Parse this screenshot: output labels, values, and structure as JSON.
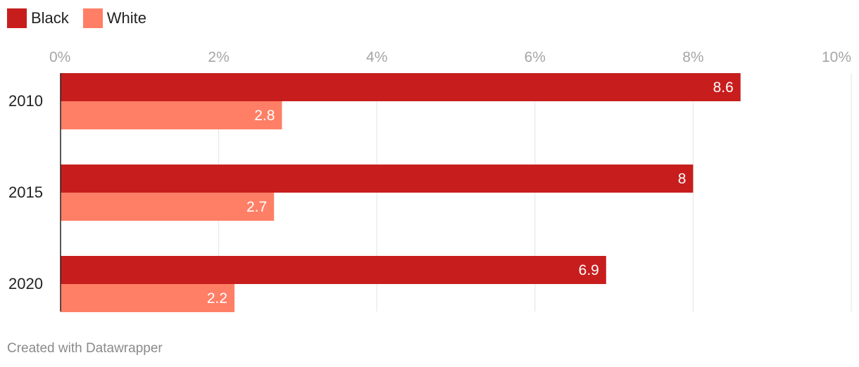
{
  "chart_data": {
    "type": "bar",
    "orientation": "horizontal",
    "categories": [
      "2010",
      "2015",
      "2020"
    ],
    "series": [
      {
        "name": "Black",
        "values": [
          8.6,
          8,
          6.9
        ],
        "color": "#c71e1d"
      },
      {
        "name": "White",
        "values": [
          2.8,
          2.7,
          2.2
        ],
        "color": "#fe7f66"
      }
    ],
    "xlim": [
      0,
      10
    ],
    "x_ticks": [
      0,
      2,
      4,
      6,
      8,
      10
    ],
    "x_tick_labels": [
      "0%",
      "2%",
      "4%",
      "6%",
      "8%",
      "10%"
    ],
    "value_labels": [
      [
        "8.6",
        "8",
        "6.9"
      ],
      [
        "2.8",
        "2.7",
        "2.2"
      ]
    ],
    "grid": true,
    "legend": "top-left"
  },
  "footer": "Created with Datawrapper"
}
